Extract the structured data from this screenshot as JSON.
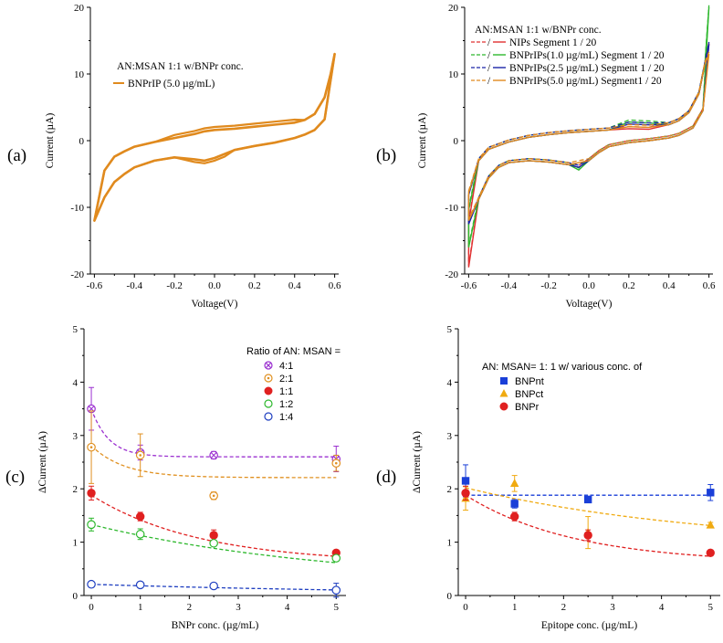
{
  "chart_data": [
    {
      "panel": "(a)",
      "type": "line",
      "xlabel": "Voltage(V)",
      "ylabel": "Current (µA)",
      "xlim": [
        -0.62,
        0.62
      ],
      "ylim": [
        -20,
        20
      ],
      "xticks": [
        "-0.6",
        "-0.4",
        "-0.2",
        "0.0",
        "0.2",
        "0.4",
        "0.6"
      ],
      "yticks": [
        "-20",
        "-10",
        "0",
        "10",
        "20"
      ],
      "legend_title": "AN:MSAN 1:1 w/BNPr conc.",
      "series": [
        {
          "name": "BNPrIP (5.0 µg/mL)",
          "color": "#e08a1e",
          "loop": true,
          "upper": {
            "x": [
              -0.6,
              -0.55,
              -0.5,
              -0.45,
              -0.4,
              -0.3,
              -0.2,
              -0.1,
              -0.05,
              0.0,
              0.1,
              0.2,
              0.3,
              0.4,
              0.45,
              0.5,
              0.55,
              0.58,
              0.6
            ],
            "y": [
              -12,
              -4.5,
              -2.4,
              -1.6,
              -0.9,
              -0.2,
              0.4,
              1.0,
              1.4,
              1.6,
              1.8,
              2.1,
              2.4,
              2.7,
              3.1,
              4.0,
              6.5,
              10,
              13
            ]
          },
          "lower": {
            "x": [
              0.6,
              0.55,
              0.5,
              0.45,
              0.4,
              0.3,
              0.2,
              0.1,
              0.05,
              0.0,
              -0.05,
              -0.1,
              -0.2,
              -0.3,
              -0.4,
              -0.45,
              -0.5,
              -0.55,
              -0.6
            ],
            "y": [
              13,
              3.2,
              1.6,
              0.9,
              0.4,
              -0.3,
              -0.8,
              -1.4,
              -2.0,
              -2.6,
              -3.0,
              -2.8,
              -2.5,
              -3.0,
              -4.0,
              -5.0,
              -6.2,
              -8.5,
              -12
            ]
          }
        }
      ]
    },
    {
      "panel": "(b)",
      "type": "line",
      "xlabel": "Voltage(V)",
      "ylabel": "Current (µA)",
      "xlim": [
        -0.62,
        0.62
      ],
      "ylim": [
        -20,
        20
      ],
      "xticks": [
        "-0.6",
        "-0.4",
        "-0.2",
        "0.0",
        "0.2",
        "0.4",
        "0.6"
      ],
      "yticks": [
        "-20",
        "-10",
        "0",
        "10",
        "20"
      ],
      "legend_title": "AN:MSAN 1:1 w/BNPr conc.",
      "series": [
        {
          "name": "NIPs Segment 1 / 20",
          "color": "#e03030",
          "end_pos": 14.5,
          "end_neg": -19,
          "peak": -4.0,
          "ox": 1.8
        },
        {
          "name": "BNPrIPs(1.0 µg/mL) Segment 1 / 20",
          "color": "#2fb82f",
          "end_pos": 20,
          "end_neg": -16,
          "peak": -4.4,
          "ox": 2.8
        },
        {
          "name": "BNPrIPs(2.5 µg/mL) Segment 1 / 20",
          "color": "#1a24a8",
          "end_pos": 14.5,
          "end_neg": -12.5,
          "peak": -4.0,
          "ox": 2.5
        },
        {
          "name": "BNPrIPs(5.0 µg/mL) Segment1 / 20",
          "color": "#e08a1e",
          "end_pos": 13,
          "end_neg": -12,
          "peak": -3.3,
          "ox": 2.1
        }
      ]
    },
    {
      "panel": "(c)",
      "type": "scatter",
      "xlabel": "BNPr conc. (µg/mL)",
      "ylabel": "ΔCurrent (µA)",
      "xlim": [
        -0.15,
        5.2
      ],
      "ylim": [
        0,
        5
      ],
      "xticks": [
        "0",
        "1",
        "2",
        "3",
        "4",
        "5"
      ],
      "yticks": [
        "0",
        "1",
        "2",
        "3",
        "4",
        "5"
      ],
      "legend_title": "Ratio of AN: MSAN =",
      "series": [
        {
          "name": "4:1",
          "color": "#9b30d0",
          "marker": "circle-x",
          "x": [
            0,
            1,
            2.5,
            5
          ],
          "y": [
            3.5,
            2.68,
            2.63,
            2.56
          ],
          "err": [
            0.4,
            0.14,
            0.07,
            0.24
          ],
          "fit": {
            "a": 2.6,
            "b": 0.9,
            "k": 2.8
          }
        },
        {
          "name": "2:1",
          "color": "#e09020",
          "marker": "circle-dot",
          "x": [
            0,
            1,
            2.5,
            5
          ],
          "y": [
            2.78,
            2.63,
            1.87,
            2.48
          ],
          "err": [
            0.68,
            0.4,
            0.07,
            0.15
          ],
          "fit": {
            "a": 2.21,
            "b": 0.6,
            "k": 1.5
          }
        },
        {
          "name": "1:1",
          "color": "#e02020",
          "marker": "filled-circle",
          "x": [
            0,
            1,
            2.5,
            5
          ],
          "y": [
            1.92,
            1.48,
            1.13,
            0.8
          ],
          "err": [
            0.13,
            0.08,
            0.1,
            0.05
          ],
          "fit": {
            "a": 0.6,
            "b": 1.28,
            "k": 0.45
          }
        },
        {
          "name": "1:2",
          "color": "#2db82d",
          "marker": "open-circle",
          "x": [
            0,
            1,
            2.5,
            5
          ],
          "y": [
            1.33,
            1.15,
            0.98,
            0.7
          ],
          "err": [
            0.12,
            0.1,
            0.04,
            0.05
          ],
          "fit": {
            "a": 0.2,
            "b": 1.13,
            "k": 0.2
          }
        },
        {
          "name": "1:4",
          "color": "#1f3fc0",
          "marker": "open-circle",
          "x": [
            0,
            1,
            2.5,
            5
          ],
          "y": [
            0.21,
            0.2,
            0.18,
            0.1
          ],
          "err": [
            0.03,
            0.02,
            0.02,
            0.13
          ],
          "fit": {
            "a": 0.0,
            "b": 0.21,
            "k": 0.14
          }
        }
      ]
    },
    {
      "panel": "(d)",
      "type": "scatter",
      "xlabel": "Epitope conc. (µg/mL)",
      "ylabel": "ΔCurrent (µA)",
      "xlim": [
        -0.15,
        5.2
      ],
      "ylim": [
        0,
        5
      ],
      "xticks": [
        "0",
        "1",
        "2",
        "3",
        "4",
        "5"
      ],
      "yticks": [
        "0",
        "1",
        "2",
        "3",
        "4",
        "5"
      ],
      "legend_title": "AN: MSAN= 1: 1 w/ various conc. of",
      "series": [
        {
          "name": "BNPnt",
          "color": "#1a3fd8",
          "marker": "square",
          "x": [
            0,
            1,
            2.5,
            5
          ],
          "y": [
            2.15,
            1.72,
            1.8,
            1.93
          ],
          "err": [
            0.3,
            0.08,
            0.05,
            0.15
          ],
          "fit": {
            "a": 1.88,
            "b": 0,
            "k": 1
          }
        },
        {
          "name": "BNPct",
          "color": "#f0aa10",
          "marker": "triangle",
          "x": [
            0,
            1,
            2.5,
            5
          ],
          "y": [
            1.82,
            2.1,
            1.18,
            1.32
          ],
          "err": [
            0.22,
            0.15,
            0.3,
            0.05
          ],
          "fit": {
            "a": 0.9,
            "b": 1.12,
            "k": 0.2
          }
        },
        {
          "name": "BNPr",
          "color": "#e02020",
          "marker": "filled-circle",
          "x": [
            0,
            1,
            2.5,
            5
          ],
          "y": [
            1.92,
            1.48,
            1.13,
            0.8
          ],
          "err": [
            0.13,
            0.08,
            0.1,
            0.05
          ],
          "fit": {
            "a": 0.6,
            "b": 1.28,
            "k": 0.45
          }
        }
      ]
    }
  ]
}
